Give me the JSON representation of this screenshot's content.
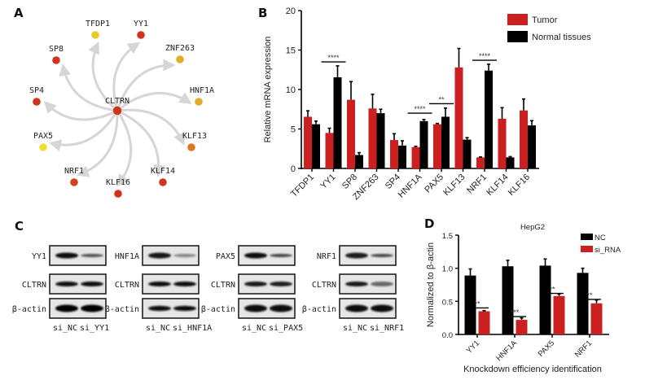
{
  "panels": {
    "A": {
      "letter": "A",
      "center": {
        "name": "CLTRN",
        "color": "#d0341c"
      },
      "nodes": [
        {
          "name": "TFDP1",
          "color": "#e8cc2c"
        },
        {
          "name": "YY1",
          "color": "#d0341c"
        },
        {
          "name": "ZNF263",
          "color": "#e3ab2a"
        },
        {
          "name": "HNF1A",
          "color": "#e3ab2a"
        },
        {
          "name": "KLF13",
          "color": "#dc7a24"
        },
        {
          "name": "KLF14",
          "color": "#d0341c"
        },
        {
          "name": "KLF16",
          "color": "#d0341c"
        },
        {
          "name": "NRF1",
          "color": "#d0441c"
        },
        {
          "name": "PAX5",
          "color": "#eee136"
        },
        {
          "name": "SP4",
          "color": "#d0341c"
        },
        {
          "name": "SP8",
          "color": "#d0341c"
        }
      ],
      "edge_color": "#d6d6d6"
    },
    "C": {
      "letter": "C",
      "blots": [
        {
          "target": "YY1",
          "rows": [
            "YY1",
            "CLTRN",
            "β-actin"
          ],
          "lanes": [
            "si_NC",
            "si_YY1"
          ]
        },
        {
          "target": "HNF1A",
          "rows": [
            "HNF1A",
            "CLTRN",
            "β-actin"
          ],
          "lanes": [
            "si_NC",
            "si_HNF1A"
          ]
        },
        {
          "target": "PAX5",
          "rows": [
            "PAX5",
            "CLTRN",
            "β-actin"
          ],
          "lanes": [
            "si_NC",
            "si_PAX5"
          ]
        },
        {
          "target": "NRF1",
          "rows": [
            "NRF1",
            "CLTRN",
            "β-actin"
          ],
          "lanes": [
            "si_NC",
            "si_NRF1"
          ]
        }
      ]
    }
  },
  "chart_data": [
    {
      "panel": "B",
      "type": "bar",
      "title": "",
      "xlabel": "",
      "ylabel": "Relative mRNA expression",
      "ylim": [
        0,
        20
      ],
      "yticks": [
        0,
        5,
        10,
        15,
        20
      ],
      "categories": [
        "TFDP1",
        "YY1",
        "SP8",
        "ZNF263",
        "SP4",
        "HNF1A",
        "PAX5",
        "KLF13",
        "NRF1",
        "KLF14",
        "KLF16"
      ],
      "series": [
        {
          "name": "Tumor",
          "color": "#cc1f1f",
          "values": [
            6.55,
            4.5,
            8.7,
            7.6,
            3.6,
            2.7,
            5.6,
            12.8,
            1.4,
            6.3,
            7.35
          ],
          "error_upper": [
            7.3,
            5.1,
            11.0,
            9.4,
            4.4,
            2.8,
            5.7,
            15.2,
            1.45,
            7.7,
            8.8
          ]
        },
        {
          "name": "Normal tissues",
          "color": "#000000",
          "values": [
            5.6,
            11.55,
            1.7,
            7.0,
            2.9,
            6.0,
            6.55,
            3.65,
            12.4,
            1.4,
            5.45
          ],
          "error_upper": [
            6.0,
            13.0,
            2.0,
            7.5,
            3.5,
            6.2,
            7.65,
            3.9,
            13.2,
            1.5,
            6.05
          ]
        }
      ],
      "significance": [
        {
          "category": "YY1",
          "label": "****",
          "y": 13.5
        },
        {
          "category": "HNF1A",
          "label": "****",
          "y": 7.0
        },
        {
          "category": "PAX5",
          "label": "**",
          "y": 8.2
        },
        {
          "category": "NRF1",
          "label": "****",
          "y": 13.7
        }
      ],
      "legend": [
        "Tumor",
        "Normal tissues"
      ],
      "legend_position": "top-right"
    },
    {
      "panel": "D",
      "type": "bar",
      "title": "HepG2",
      "xlabel": "Knockdown efficiency identification",
      "ylabel": "Normalized to β-actin",
      "ylim": [
        0,
        1.5
      ],
      "yticks": [
        "0.0",
        "0.5",
        "1.0",
        "1.5"
      ],
      "categories": [
        "YY1",
        "HNF1A",
        "PAX5",
        "NRF1"
      ],
      "series": [
        {
          "name": "NC",
          "color": "#000000",
          "values": [
            0.89,
            1.03,
            1.04,
            0.93
          ],
          "error_upper": [
            0.99,
            1.12,
            1.14,
            1.0
          ]
        },
        {
          "name": "si_RNA",
          "color": "#cc1f1f",
          "values": [
            0.35,
            0.22,
            0.58,
            0.47
          ],
          "error_upper": [
            0.36,
            0.25,
            0.61,
            0.52
          ]
        }
      ],
      "significance": [
        {
          "category": "YY1",
          "label": "**",
          "y": 0.4
        },
        {
          "category": "HNF1A",
          "label": "***",
          "y": 0.27
        },
        {
          "category": "PAX5",
          "label": "**",
          "y": 0.62
        },
        {
          "category": "NRF1",
          "label": "**",
          "y": 0.53
        }
      ],
      "legend": [
        "NC",
        "si_RNA"
      ],
      "legend_position": "top-right"
    }
  ]
}
